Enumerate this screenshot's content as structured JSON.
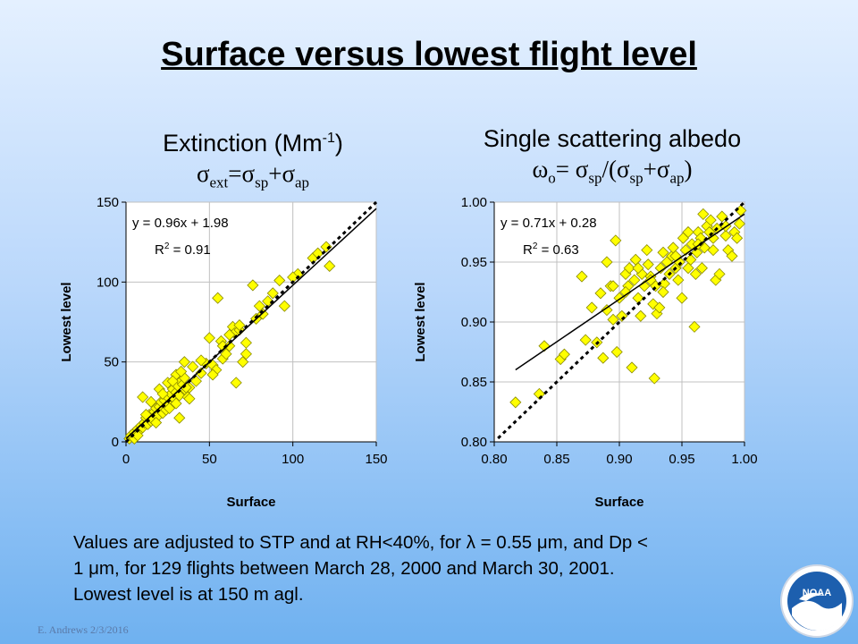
{
  "slide": {
    "title": "Surface versus lowest flight level",
    "footer": "E. Andrews   2/3/2016",
    "note": {
      "line1_a": "Values are adjusted to STP and at RH<40%, for ",
      "lambda": "λ",
      "line1_b": " = 0.55 ",
      "mu1": "μ",
      "line1_c": "m, and Dp <",
      "line2_a": "1 ",
      "mu2": "μ",
      "line2_b": "m, for 129 flights between March 28, 2000 and March 30, 2001.",
      "line3": "Lowest level is at 150 m agl."
    },
    "logo_text": "NOAA"
  },
  "titles": {
    "left_main": "Extinction (Mm",
    "left_main_sup": "-1",
    "left_main_end": ")",
    "left_formula": {
      "s1": "σ",
      "sub1": "ext",
      "eq": "=",
      "s2": "σ",
      "sub2": "sp",
      "plus": "+",
      "s3": "σ",
      "sub3": "ap"
    },
    "right_main": "Single scattering albedo",
    "right_formula": {
      "w": "ω",
      "wsub": "o",
      "eq": "= ",
      "s1": "σ",
      "sub1": "sp",
      "div": "/(",
      "s2": "σ",
      "sub2": "sp",
      "plus": "+",
      "s3": "σ",
      "sub3": "ap",
      "close": ")"
    }
  },
  "chart_data": [
    {
      "type": "scatter",
      "xlabel": "Surface",
      "ylabel": "Lowest level",
      "xlim": [
        0,
        150
      ],
      "ylim": [
        0,
        150
      ],
      "xticks": [
        "0",
        "50",
        "100",
        "150"
      ],
      "yticks": [
        "0",
        "50",
        "100",
        "150"
      ],
      "grid": true,
      "marker_color": "#ffff00",
      "fit": {
        "slope": 0.96,
        "intercept": 1.98,
        "equation": "y = 0.96x + 1.98",
        "r2_label": "R",
        "r2_sup": "2",
        "r2_value": " = 0.91"
      },
      "one_to_one": true,
      "points": [
        [
          2,
          2
        ],
        [
          3,
          4
        ],
        [
          4,
          3
        ],
        [
          5,
          6
        ],
        [
          6,
          5
        ],
        [
          7,
          8
        ],
        [
          8,
          7
        ],
        [
          9,
          10
        ],
        [
          10,
          9
        ],
        [
          11,
          12
        ],
        [
          12,
          15
        ],
        [
          13,
          11
        ],
        [
          14,
          17
        ],
        [
          15,
          13
        ],
        [
          16,
          14
        ],
        [
          17,
          19
        ],
        [
          18,
          21
        ],
        [
          19,
          16
        ],
        [
          20,
          22
        ],
        [
          21,
          25
        ],
        [
          22,
          18
        ],
        [
          23,
          26
        ],
        [
          24,
          20
        ],
        [
          25,
          28
        ],
        [
          26,
          23
        ],
        [
          27,
          30
        ],
        [
          28,
          33
        ],
        [
          29,
          27
        ],
        [
          30,
          31
        ],
        [
          31,
          35
        ],
        [
          32,
          29
        ],
        [
          33,
          38
        ],
        [
          34,
          36
        ],
        [
          35,
          40
        ],
        [
          36,
          32
        ],
        [
          37,
          28
        ],
        [
          38,
          34
        ],
        [
          10,
          28
        ],
        [
          15,
          25
        ],
        [
          20,
          33
        ],
        [
          25,
          37
        ],
        [
          30,
          42
        ],
        [
          32,
          15
        ],
        [
          35,
          50
        ],
        [
          40,
          47
        ],
        [
          42,
          38
        ],
        [
          45,
          43
        ],
        [
          48,
          49
        ],
        [
          50,
          65
        ],
        [
          52,
          48
        ],
        [
          54,
          45
        ],
        [
          55,
          90
        ],
        [
          57,
          63
        ],
        [
          58,
          52
        ],
        [
          60,
          55
        ],
        [
          62,
          60
        ],
        [
          64,
          72
        ],
        [
          65,
          68
        ],
        [
          66,
          37
        ],
        [
          68,
          70
        ],
        [
          70,
          50
        ],
        [
          72,
          55
        ],
        [
          76,
          98
        ],
        [
          78,
          77
        ],
        [
          82,
          80
        ],
        [
          85,
          88
        ],
        [
          92,
          101
        ],
        [
          95,
          85
        ],
        [
          103,
          105
        ],
        [
          112,
          115
        ],
        [
          120,
          122
        ],
        [
          122,
          110
        ],
        [
          5,
          2
        ],
        [
          7,
          4
        ],
        [
          12,
          17
        ],
        [
          18,
          12
        ],
        [
          22,
          30
        ],
        [
          26,
          21
        ],
        [
          28,
          38
        ],
        [
          30,
          24
        ],
        [
          33,
          44
        ],
        [
          36,
          34
        ],
        [
          38,
          27
        ],
        [
          45,
          51
        ],
        [
          52,
          42
        ],
        [
          58,
          60
        ],
        [
          62,
          67
        ],
        [
          68,
          73
        ],
        [
          72,
          62
        ],
        [
          80,
          85
        ],
        [
          88,
          93
        ],
        [
          100,
          103
        ],
        [
          115,
          118
        ]
      ]
    },
    {
      "type": "scatter",
      "xlabel": "Surface",
      "ylabel": "Lowest level",
      "xlim": [
        0.8,
        1.0
      ],
      "ylim": [
        0.8,
        1.0
      ],
      "xticks": [
        "0.80",
        "0.85",
        "0.90",
        "0.95",
        "1.00"
      ],
      "yticks": [
        "0.80",
        "0.85",
        "0.90",
        "0.95",
        "1.00"
      ],
      "grid": true,
      "marker_color": "#ffff00",
      "fit": {
        "slope": 0.71,
        "intercept": 0.28,
        "equation": "y = 0.71x + 0.28",
        "r2_label": "R",
        "r2_sup": "2",
        "r2_value": " = 0.63"
      },
      "one_to_one": true,
      "points": [
        [
          0.817,
          0.833
        ],
        [
          0.836,
          0.84
        ],
        [
          0.84,
          0.88
        ],
        [
          0.853,
          0.869
        ],
        [
          0.856,
          0.873
        ],
        [
          0.87,
          0.938
        ],
        [
          0.873,
          0.885
        ],
        [
          0.878,
          0.912
        ],
        [
          0.882,
          0.883
        ],
        [
          0.885,
          0.924
        ],
        [
          0.887,
          0.87
        ],
        [
          0.89,
          0.91
        ],
        [
          0.89,
          0.95
        ],
        [
          0.893,
          0.93
        ],
        [
          0.895,
          0.902
        ],
        [
          0.897,
          0.968
        ],
        [
          0.898,
          0.875
        ],
        [
          0.9,
          0.92
        ],
        [
          0.902,
          0.905
        ],
        [
          0.905,
          0.94
        ],
        [
          0.907,
          0.93
        ],
        [
          0.908,
          0.945
        ],
        [
          0.91,
          0.862
        ],
        [
          0.912,
          0.935
        ],
        [
          0.913,
          0.952
        ],
        [
          0.915,
          0.92
        ],
        [
          0.917,
          0.905
        ],
        [
          0.918,
          0.94
        ],
        [
          0.92,
          0.93
        ],
        [
          0.922,
          0.96
        ],
        [
          0.923,
          0.948
        ],
        [
          0.925,
          0.938
        ],
        [
          0.927,
          0.915
        ],
        [
          0.928,
          0.853
        ],
        [
          0.929,
          0.93
        ],
        [
          0.93,
          0.907
        ],
        [
          0.932,
          0.912
        ],
        [
          0.933,
          0.945
        ],
        [
          0.935,
          0.958
        ],
        [
          0.936,
          0.932
        ],
        [
          0.938,
          0.95
        ],
        [
          0.94,
          0.94
        ],
        [
          0.942,
          0.955
        ],
        [
          0.943,
          0.962
        ],
        [
          0.945,
          0.945
        ],
        [
          0.947,
          0.935
        ],
        [
          0.948,
          0.95
        ],
        [
          0.95,
          0.92
        ],
        [
          0.951,
          0.97
        ],
        [
          0.953,
          0.96
        ],
        [
          0.955,
          0.945
        ],
        [
          0.957,
          0.952
        ],
        [
          0.958,
          0.965
        ],
        [
          0.96,
          0.896
        ],
        [
          0.961,
          0.94
        ],
        [
          0.962,
          0.958
        ],
        [
          0.963,
          0.975
        ],
        [
          0.965,
          0.97
        ],
        [
          0.966,
          0.945
        ],
        [
          0.967,
          0.99
        ],
        [
          0.968,
          0.962
        ],
        [
          0.97,
          0.98
        ],
        [
          0.972,
          0.975
        ],
        [
          0.973,
          0.985
        ],
        [
          0.975,
          0.97
        ],
        [
          0.977,
          0.935
        ],
        [
          0.978,
          0.978
        ],
        [
          0.98,
          0.94
        ],
        [
          0.982,
          0.988
        ],
        [
          0.985,
          0.972
        ],
        [
          0.987,
          0.96
        ],
        [
          0.99,
          0.955
        ],
        [
          0.992,
          0.975
        ],
        [
          0.994,
          0.97
        ],
        [
          0.996,
          0.982
        ],
        [
          0.997,
          0.993
        ],
        [
          0.895,
          0.93
        ],
        [
          0.905,
          0.925
        ],
        [
          0.915,
          0.945
        ],
        [
          0.925,
          0.935
        ],
        [
          0.935,
          0.925
        ],
        [
          0.945,
          0.955
        ],
        [
          0.955,
          0.975
        ],
        [
          0.963,
          0.965
        ],
        [
          0.975,
          0.96
        ],
        [
          0.985,
          0.98
        ]
      ]
    }
  ]
}
